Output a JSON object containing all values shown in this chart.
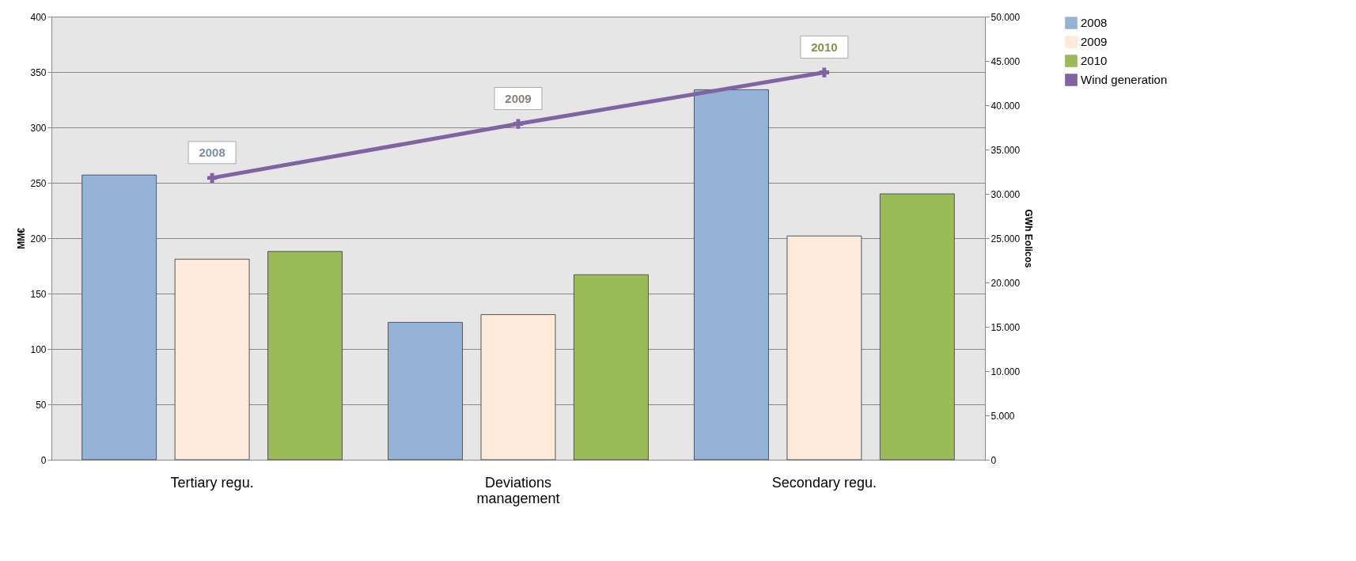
{
  "chart_data": {
    "type": "bar",
    "categories": [
      "Tertiary regu.",
      "Deviations management",
      "Secondary regu."
    ],
    "ylabel": "MM€",
    "y2label": "GWh Eolicos",
    "series": [
      {
        "name": "2008",
        "color": "#95b3d7",
        "values": [
          257,
          124,
          334
        ]
      },
      {
        "name": "2009",
        "color": "#fdeada",
        "values": [
          181,
          131,
          202
        ]
      },
      {
        "name": "2010",
        "color": "#9bbb59",
        "values": [
          188,
          167,
          240
        ]
      },
      {
        "name": "Wind generation",
        "type": "line",
        "axis": "y2",
        "color": "#8064a2",
        "marker": "cross",
        "values": [
          31800,
          37900,
          43700
        ]
      }
    ],
    "annotations": [
      "2008",
      "2009",
      "2010"
    ],
    "ylim": [
      0,
      400
    ],
    "yticks": [
      0,
      50,
      100,
      150,
      200,
      250,
      300,
      350,
      400
    ],
    "y2lim": [
      0,
      50000
    ],
    "y2ticks": [
      {
        "value": 0,
        "label": "0"
      },
      {
        "value": 5000,
        "label": "5.000"
      },
      {
        "value": 10000,
        "label": "10.000"
      },
      {
        "value": 15000,
        "label": "15.000"
      },
      {
        "value": 20000,
        "label": "20.000"
      },
      {
        "value": 25000,
        "label": "25.000"
      },
      {
        "value": 30000,
        "label": "30.000"
      },
      {
        "value": 35000,
        "label": "35.000"
      },
      {
        "value": 40000,
        "label": "40.000"
      },
      {
        "value": 45000,
        "label": "45.000"
      },
      {
        "value": 50000,
        "label": "50.000"
      }
    ],
    "grid": "y",
    "legend": "right"
  }
}
